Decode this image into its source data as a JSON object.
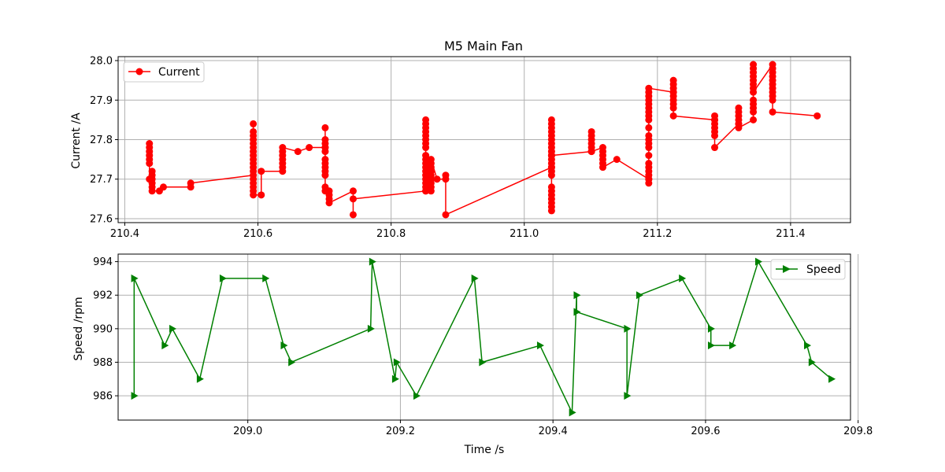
{
  "chart_data": [
    {
      "type": "line",
      "title": "M5 Main Fan",
      "xlabel": "",
      "ylabel": "Current /A",
      "xlim": [
        210.39,
        211.49
      ],
      "ylim": [
        27.59,
        28.01
      ],
      "xticks": [
        210.4,
        210.6,
        210.8,
        211.0,
        211.2,
        211.4
      ],
      "xtick_labels": [
        "210.4",
        "210.6",
        "210.8",
        "211.0",
        "211.2",
        "211.4"
      ],
      "yticks": [
        27.6,
        27.7,
        27.8,
        27.9,
        28.0
      ],
      "ytick_labels": [
        "27.6",
        "27.7",
        "27.8",
        "27.9",
        "28.0"
      ],
      "grid": true,
      "legend": "upper left",
      "series": [
        {
          "name": "Current",
          "color": "#ff0000",
          "marker": "circle",
          "points": [
            [
              210.437,
              27.79
            ],
            [
              210.437,
              27.78
            ],
            [
              210.437,
              27.77
            ],
            [
              210.437,
              27.76
            ],
            [
              210.437,
              27.75
            ],
            [
              210.437,
              27.74
            ],
            [
              210.437,
              27.7
            ],
            [
              210.441,
              27.72
            ],
            [
              210.441,
              27.71
            ],
            [
              210.441,
              27.7
            ],
            [
              210.441,
              27.69
            ],
            [
              210.441,
              27.68
            ],
            [
              210.441,
              27.67
            ],
            [
              210.452,
              27.67
            ],
            [
              210.458,
              27.68
            ],
            [
              210.499,
              27.68
            ],
            [
              210.499,
              27.69
            ],
            [
              210.593,
              27.71
            ],
            [
              210.593,
              27.84
            ],
            [
              210.593,
              27.82
            ],
            [
              210.593,
              27.81
            ],
            [
              210.593,
              27.8
            ],
            [
              210.593,
              27.79
            ],
            [
              210.593,
              27.78
            ],
            [
              210.593,
              27.77
            ],
            [
              210.593,
              27.76
            ],
            [
              210.593,
              27.75
            ],
            [
              210.593,
              27.74
            ],
            [
              210.593,
              27.73
            ],
            [
              210.593,
              27.72
            ],
            [
              210.593,
              27.7
            ],
            [
              210.593,
              27.69
            ],
            [
              210.593,
              27.68
            ],
            [
              210.593,
              27.67
            ],
            [
              210.593,
              27.66
            ],
            [
              210.605,
              27.66
            ],
            [
              210.605,
              27.72
            ],
            [
              210.637,
              27.72
            ],
            [
              210.637,
              27.73
            ],
            [
              210.637,
              27.74
            ],
            [
              210.637,
              27.75
            ],
            [
              210.637,
              27.76
            ],
            [
              210.637,
              27.77
            ],
            [
              210.637,
              27.78
            ],
            [
              210.66,
              27.77
            ],
            [
              210.677,
              27.78
            ],
            [
              210.701,
              27.78
            ],
            [
              210.701,
              27.83
            ],
            [
              210.701,
              27.8
            ],
            [
              210.701,
              27.79
            ],
            [
              210.701,
              27.78
            ],
            [
              210.701,
              27.77
            ],
            [
              210.701,
              27.75
            ],
            [
              210.701,
              27.74
            ],
            [
              210.701,
              27.73
            ],
            [
              210.701,
              27.72
            ],
            [
              210.701,
              27.71
            ],
            [
              210.701,
              27.68
            ],
            [
              210.701,
              27.67
            ],
            [
              210.707,
              27.67
            ],
            [
              210.707,
              27.66
            ],
            [
              210.707,
              27.65
            ],
            [
              210.707,
              27.64
            ],
            [
              210.743,
              27.67
            ],
            [
              210.743,
              27.61
            ],
            [
              210.743,
              27.65
            ],
            [
              210.852,
              27.67
            ],
            [
              210.852,
              27.85
            ],
            [
              210.852,
              27.84
            ],
            [
              210.852,
              27.83
            ],
            [
              210.852,
              27.82
            ],
            [
              210.852,
              27.81
            ],
            [
              210.852,
              27.8
            ],
            [
              210.852,
              27.79
            ],
            [
              210.852,
              27.78
            ],
            [
              210.852,
              27.76
            ],
            [
              210.852,
              27.75
            ],
            [
              210.852,
              27.74
            ],
            [
              210.852,
              27.73
            ],
            [
              210.852,
              27.72
            ],
            [
              210.852,
              27.71
            ],
            [
              210.852,
              27.7
            ],
            [
              210.852,
              27.69
            ],
            [
              210.852,
              27.68
            ],
            [
              210.852,
              27.67
            ],
            [
              210.86,
              27.67
            ],
            [
              210.86,
              27.68
            ],
            [
              210.86,
              27.69
            ],
            [
              210.86,
              27.7
            ],
            [
              210.86,
              27.71
            ],
            [
              210.86,
              27.72
            ],
            [
              210.86,
              27.73
            ],
            [
              210.86,
              27.74
            ],
            [
              210.86,
              27.75
            ],
            [
              210.869,
              27.7
            ],
            [
              210.882,
              27.7
            ],
            [
              210.882,
              27.71
            ],
            [
              210.882,
              27.61
            ],
            [
              211.041,
              27.73
            ],
            [
              211.041,
              27.85
            ],
            [
              211.041,
              27.84
            ],
            [
              211.041,
              27.83
            ],
            [
              211.041,
              27.82
            ],
            [
              211.041,
              27.81
            ],
            [
              211.041,
              27.8
            ],
            [
              211.041,
              27.79
            ],
            [
              211.041,
              27.78
            ],
            [
              211.041,
              27.77
            ],
            [
              211.041,
              27.76
            ],
            [
              211.041,
              27.75
            ],
            [
              211.041,
              27.74
            ],
            [
              211.041,
              27.73
            ],
            [
              211.041,
              27.72
            ],
            [
              211.041,
              27.71
            ],
            [
              211.041,
              27.68
            ],
            [
              211.041,
              27.67
            ],
            [
              211.041,
              27.66
            ],
            [
              211.041,
              27.65
            ],
            [
              211.041,
              27.64
            ],
            [
              211.041,
              27.63
            ],
            [
              211.041,
              27.62
            ],
            [
              211.041,
              27.76
            ],
            [
              211.101,
              27.77
            ],
            [
              211.101,
              27.82
            ],
            [
              211.101,
              27.81
            ],
            [
              211.101,
              27.8
            ],
            [
              211.101,
              27.79
            ],
            [
              211.101,
              27.78
            ],
            [
              211.101,
              27.77
            ],
            [
              211.118,
              27.78
            ],
            [
              211.118,
              27.77
            ],
            [
              211.118,
              27.76
            ],
            [
              211.118,
              27.75
            ],
            [
              211.118,
              27.74
            ],
            [
              211.118,
              27.73
            ],
            [
              211.139,
              27.75
            ],
            [
              211.187,
              27.7
            ],
            [
              211.187,
              27.69
            ],
            [
              211.187,
              27.7
            ],
            [
              211.187,
              27.71
            ],
            [
              211.187,
              27.72
            ],
            [
              211.187,
              27.73
            ],
            [
              211.187,
              27.74
            ],
            [
              211.187,
              27.76
            ],
            [
              211.187,
              27.78
            ],
            [
              211.187,
              27.79
            ],
            [
              211.187,
              27.8
            ],
            [
              211.187,
              27.81
            ],
            [
              211.187,
              27.83
            ],
            [
              211.187,
              27.85
            ],
            [
              211.187,
              27.86
            ],
            [
              211.187,
              27.87
            ],
            [
              211.187,
              27.88
            ],
            [
              211.187,
              27.89
            ],
            [
              211.187,
              27.9
            ],
            [
              211.187,
              27.91
            ],
            [
              211.187,
              27.92
            ],
            [
              211.187,
              27.93
            ],
            [
              211.224,
              27.92
            ],
            [
              211.224,
              27.95
            ],
            [
              211.224,
              27.94
            ],
            [
              211.224,
              27.93
            ],
            [
              211.224,
              27.92
            ],
            [
              211.224,
              27.91
            ],
            [
              211.224,
              27.9
            ],
            [
              211.224,
              27.89
            ],
            [
              211.224,
              27.88
            ],
            [
              211.224,
              27.86
            ],
            [
              211.286,
              27.85
            ],
            [
              211.286,
              27.86
            ],
            [
              211.286,
              27.85
            ],
            [
              211.286,
              27.84
            ],
            [
              211.286,
              27.83
            ],
            [
              211.286,
              27.82
            ],
            [
              211.286,
              27.81
            ],
            [
              211.286,
              27.78
            ],
            [
              211.322,
              27.84
            ],
            [
              211.322,
              27.88
            ],
            [
              211.322,
              27.87
            ],
            [
              211.322,
              27.86
            ],
            [
              211.322,
              27.85
            ],
            [
              211.322,
              27.84
            ],
            [
              211.322,
              27.83
            ],
            [
              211.344,
              27.85
            ],
            [
              211.344,
              27.87
            ],
            [
              211.344,
              27.88
            ],
            [
              211.344,
              27.89
            ],
            [
              211.344,
              27.9
            ],
            [
              211.344,
              27.99
            ],
            [
              211.344,
              27.98
            ],
            [
              211.344,
              27.97
            ],
            [
              211.344,
              27.96
            ],
            [
              211.344,
              27.95
            ],
            [
              211.344,
              27.94
            ],
            [
              211.344,
              27.93
            ],
            [
              211.344,
              27.92
            ],
            [
              211.373,
              27.99
            ],
            [
              211.373,
              27.98
            ],
            [
              211.373,
              27.97
            ],
            [
              211.373,
              27.96
            ],
            [
              211.373,
              27.95
            ],
            [
              211.373,
              27.94
            ],
            [
              211.373,
              27.93
            ],
            [
              211.373,
              27.92
            ],
            [
              211.373,
              27.91
            ],
            [
              211.373,
              27.9
            ],
            [
              211.373,
              27.87
            ],
            [
              211.44,
              27.86
            ]
          ]
        }
      ]
    },
    {
      "type": "line",
      "title": "",
      "xlabel": "Time /s",
      "ylabel": "Speed /rpm",
      "xlim": [
        208.83,
        209.79
      ],
      "ylim": [
        984.55,
        994.45
      ],
      "xticks": [
        209.0,
        209.2,
        209.4,
        209.6,
        209.8
      ],
      "xtick_labels": [
        "209.0",
        "209.2",
        "209.4",
        "209.6",
        "209.8"
      ],
      "yticks": [
        986,
        988,
        990,
        992,
        994
      ],
      "ytick_labels": [
        "986",
        "988",
        "990",
        "992",
        "994"
      ],
      "grid": true,
      "legend": "upper right",
      "series": [
        {
          "name": "Speed",
          "color": "#008000",
          "marker": "triangle-right",
          "points": [
            [
              208.851,
              986
            ],
            [
              208.851,
              993
            ],
            [
              208.891,
              989
            ],
            [
              208.901,
              990
            ],
            [
              208.937,
              987
            ],
            [
              208.967,
              993
            ],
            [
              209.023,
              993
            ],
            [
              209.047,
              989
            ],
            [
              209.057,
              988
            ],
            [
              209.161,
              990
            ],
            [
              209.163,
              994
            ],
            [
              209.193,
              987
            ],
            [
              209.195,
              988
            ],
            [
              209.221,
              986
            ],
            [
              209.297,
              993
            ],
            [
              209.307,
              988
            ],
            [
              209.383,
              989
            ],
            [
              209.425,
              985
            ],
            [
              209.431,
              992
            ],
            [
              209.431,
              991
            ],
            [
              209.497,
              990
            ],
            [
              209.497,
              986
            ],
            [
              209.513,
              992
            ],
            [
              209.569,
              993
            ],
            [
              209.607,
              990
            ],
            [
              209.607,
              989
            ],
            [
              209.635,
              989
            ],
            [
              209.669,
              994
            ],
            [
              209.733,
              989
            ],
            [
              209.739,
              988
            ],
            [
              209.765,
              987
            ]
          ]
        }
      ]
    }
  ]
}
